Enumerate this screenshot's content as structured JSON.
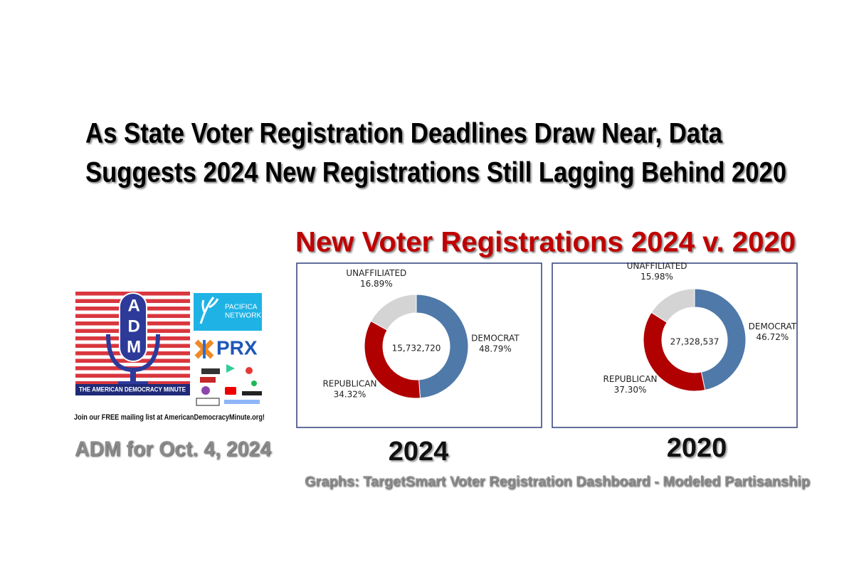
{
  "headline": [
    "As State Voter Registration Deadlines Draw Near, Data",
    "Suggests 2024 New Registrations Still Lagging Behind 2020"
  ],
  "charts_title": "New Voter Registrations 2024 v. 2020",
  "chart_data": [
    {
      "type": "donut",
      "title": "2024",
      "center_text": "15,732,720",
      "categories": [
        "DEMOCRAT",
        "REPUBLICAN",
        "UNAFFILIATED"
      ],
      "values": [
        48.79,
        34.32,
        16.89
      ],
      "value_labels": [
        "48.79%",
        "34.32%",
        "16.89%"
      ],
      "colors": [
        "#4f79a8",
        "#b00000",
        "#d4d4d4"
      ]
    },
    {
      "type": "donut",
      "title": "2020",
      "center_text": "27,328,537",
      "categories": [
        "DEMOCRAT",
        "REPUBLICAN",
        "UNAFFILIATED"
      ],
      "values": [
        46.72,
        37.3,
        15.98
      ],
      "value_labels": [
        "46.72%",
        "37.30%",
        "15.98%"
      ],
      "colors": [
        "#4f79a8",
        "#b00000",
        "#d4d4d4"
      ]
    }
  ],
  "source": "Graphs: TargetSmart Voter Registration Dashboard - Modeled Partisanship",
  "logo": {
    "monogram": "ADM",
    "name": "The American Democracy Minute",
    "partner_1": [
      "PACIFICA",
      "NETWORK"
    ],
    "partner_2": "PRX"
  },
  "mailing_list": "Join our FREE mailing list at AmericanDemocracyMinute.org!",
  "date_label": "ADM for Oct. 4, 2024"
}
